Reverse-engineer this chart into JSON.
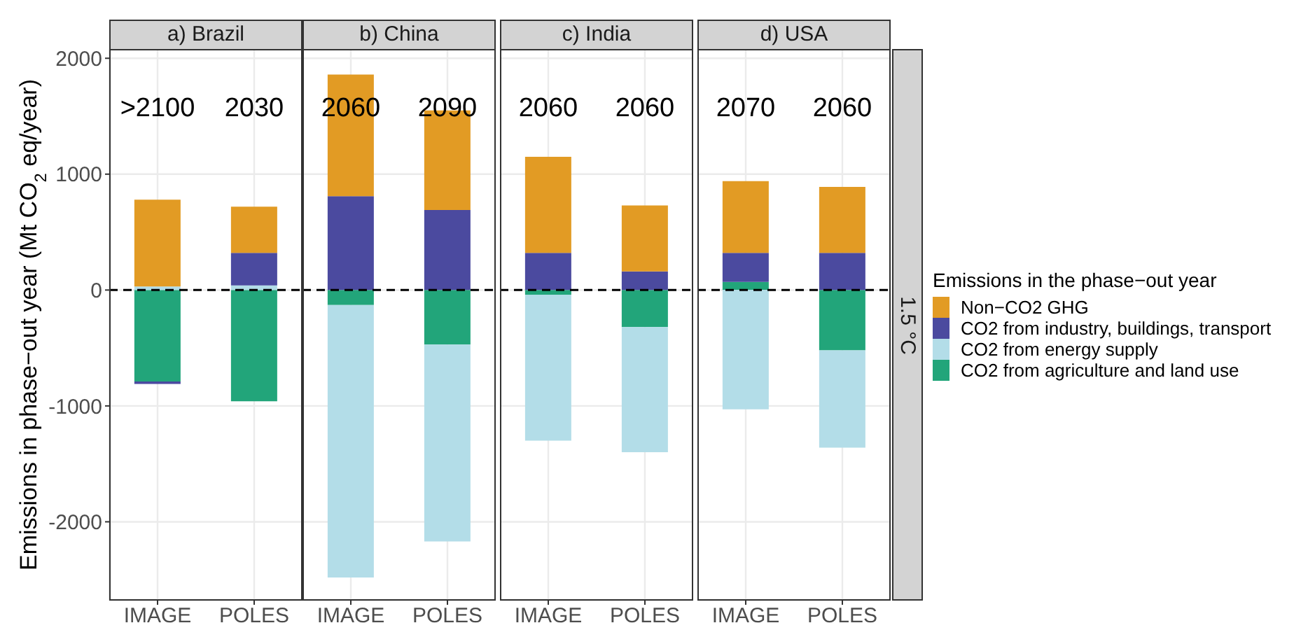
{
  "chart_data": [
    {
      "type": "bar",
      "title": "a) Brazil",
      "ylabel": "Emissions in phase−out year (Mt CO$_{2}$ eq/year)",
      "stacked": true,
      "legend": "right",
      "legend_title": "Emissions in the phase−out year",
      "categories": [
        "IMAGE",
        "POLES"
      ],
      "ylim": [
        -2680,
        2080
      ],
      "yticks": [
        -2000,
        -1000,
        0,
        1000,
        2000
      ],
      "grid": true,
      "series": [
        {
          "name": "CO2 from agriculture and land use",
          "color": "#22a57a",
          "values": [
            -790,
            -960
          ]
        },
        {
          "name": "CO2 from energy supply",
          "color": "#b3dde8",
          "values": [
            30,
            40
          ]
        },
        {
          "name": "CO2 from industry, buildings, transport",
          "color": "#4b4a9f",
          "values": [
            -20,
            280
          ]
        },
        {
          "name": "Non−CO2 GHG",
          "color": "#e29b24",
          "values": [
            750,
            400
          ]
        }
      ],
      "ref_lines": [
        {
          "axis": "y",
          "value": 0,
          "line_style": "dashed",
          "color": "#000000"
        }
      ],
      "annotations": [
        ">2100",
        "2030"
      ]
    },
    {
      "type": "bar",
      "title": "b) China",
      "stacked": true,
      "categories": [
        "IMAGE",
        "POLES"
      ],
      "ylim": [
        -2680,
        2080
      ],
      "yticks": [
        -2000,
        -1000,
        0,
        1000,
        2000
      ],
      "grid": true,
      "tick_labels": "x",
      "series": [
        {
          "color": "#22a57a",
          "values": [
            -130,
            -470
          ]
        },
        {
          "color": "#b3dde8",
          "values": [
            -2350,
            -1700
          ]
        },
        {
          "color": "#4b4a9f",
          "values": [
            810,
            690
          ]
        },
        {
          "color": "#e29b24",
          "values": [
            1050,
            860
          ]
        }
      ],
      "ref_lines": [
        {
          "axis": "y",
          "value": 0,
          "line_style": "dashed",
          "color": "#000000"
        }
      ],
      "annotations": [
        "2060",
        "2090"
      ]
    },
    {
      "type": "bar",
      "title": "c) India",
      "stacked": true,
      "categories": [
        "IMAGE",
        "POLES"
      ],
      "ylim": [
        -2680,
        2080
      ],
      "yticks": [
        -2000,
        -1000,
        0,
        1000,
        2000
      ],
      "grid": true,
      "tick_labels": "x",
      "series": [
        {
          "color": "#22a57a",
          "values": [
            -40,
            -320
          ]
        },
        {
          "color": "#b3dde8",
          "values": [
            -1260,
            -1080
          ]
        },
        {
          "color": "#4b4a9f",
          "values": [
            320,
            160
          ]
        },
        {
          "color": "#e29b24",
          "values": [
            830,
            570
          ]
        }
      ],
      "ref_lines": [
        {
          "axis": "y",
          "value": 0,
          "line_style": "dashed",
          "color": "#000000"
        }
      ],
      "annotations": [
        "2060",
        "2060"
      ]
    },
    {
      "type": "bar",
      "title": "d) USA",
      "stacked": true,
      "categories": [
        "IMAGE",
        "POLES"
      ],
      "ylim": [
        -2680,
        2080
      ],
      "yticks": [
        -2000,
        -1000,
        0,
        1000,
        2000
      ],
      "grid": true,
      "tick_labels": "x",
      "series": [
        {
          "color": "#22a57a",
          "values": [
            70,
            -520
          ]
        },
        {
          "color": "#b3dde8",
          "values": [
            -1030,
            -840
          ]
        },
        {
          "color": "#4b4a9f",
          "values": [
            250,
            320
          ]
        },
        {
          "color": "#e29b24",
          "values": [
            620,
            570
          ]
        }
      ],
      "ref_lines": [
        {
          "axis": "y",
          "value": 0,
          "line_style": "dashed",
          "color": "#000000"
        }
      ],
      "annotations": [
        "2070",
        "2060",
        "1.5 °C"
      ]
    }
  ]
}
